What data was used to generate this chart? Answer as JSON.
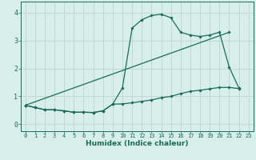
{
  "xlabel": "Humidex (Indice chaleur)",
  "background_color": "#d8eeea",
  "grid_color": "#c2d8d2",
  "line_color": "#1a6b5a",
  "xlim": [
    -0.5,
    23.5
  ],
  "ylim": [
    -0.25,
    4.4
  ],
  "xticks": [
    0,
    1,
    2,
    3,
    4,
    5,
    6,
    7,
    8,
    9,
    10,
    11,
    12,
    13,
    14,
    15,
    16,
    17,
    18,
    19,
    20,
    21,
    22,
    23
  ],
  "yticks": [
    0,
    1,
    2,
    3,
    4
  ],
  "line1_x": [
    0,
    1,
    2,
    3,
    4,
    5,
    6,
    7,
    8,
    9,
    10,
    11,
    12,
    13,
    14,
    15,
    16,
    17,
    18,
    19,
    20,
    21,
    22
  ],
  "line1_y": [
    0.68,
    0.6,
    0.52,
    0.52,
    0.48,
    0.43,
    0.43,
    0.42,
    0.48,
    0.72,
    1.3,
    3.45,
    3.75,
    3.9,
    3.95,
    3.82,
    3.3,
    3.2,
    3.15,
    3.2,
    3.3,
    2.05,
    1.3
  ],
  "line2_x": [
    0,
    1,
    2,
    3,
    4,
    5,
    6,
    7,
    8,
    9,
    10,
    11,
    12,
    13,
    14,
    15,
    16,
    17,
    18,
    19,
    20,
    21,
    22
  ],
  "line2_y": [
    0.68,
    0.6,
    0.52,
    0.52,
    0.48,
    0.43,
    0.43,
    0.42,
    0.48,
    0.72,
    0.73,
    0.77,
    0.82,
    0.87,
    0.95,
    1.0,
    1.1,
    1.18,
    1.22,
    1.27,
    1.32,
    1.32,
    1.28
  ],
  "line3_x": [
    0,
    21
  ],
  "line3_y": [
    0.68,
    3.3
  ]
}
